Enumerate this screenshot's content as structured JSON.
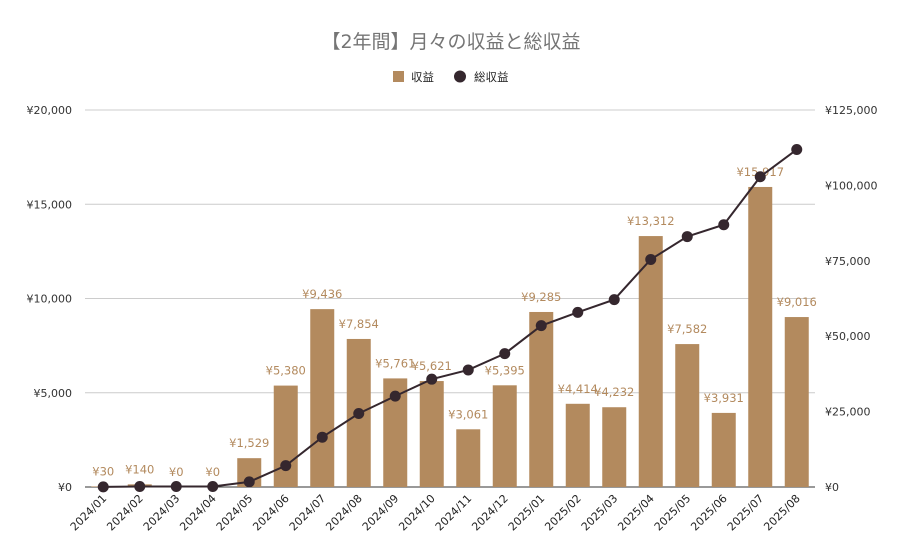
{
  "chart_data": {
    "type": "bar",
    "title": "【2年間】月々の収益と総収益",
    "categories": [
      "2024/01",
      "2024/02",
      "2024/03",
      "2024/04",
      "2024/05",
      "2024/06",
      "2024/07",
      "2024/08",
      "2024/09",
      "2024/10",
      "2024/11",
      "2024/12",
      "2025/01",
      "2025/02",
      "2025/03",
      "2025/04",
      "2025/05",
      "2025/06",
      "2025/07",
      "2025/08"
    ],
    "series": [
      {
        "name": "収益",
        "type": "bar",
        "axis": "left",
        "color": "#b38a5e",
        "values": [
          30,
          140,
          0,
          0,
          1529,
          5380,
          9436,
          7854,
          5761,
          5621,
          3061,
          5395,
          9285,
          4414,
          4232,
          13312,
          7582,
          3931,
          15917,
          9016
        ],
        "labels": [
          "¥30",
          "¥140",
          "¥0",
          "¥0",
          "¥1,529",
          "¥5,380",
          "¥9,436",
          "¥7,854",
          "¥5,761",
          "¥5,621",
          "¥3,061",
          "¥5,395",
          "¥9,285",
          "¥4,414",
          "¥4,232",
          "¥13,312",
          "¥7,582",
          "¥3,931",
          "¥15,917",
          "¥9,016"
        ]
      },
      {
        "name": "総収益",
        "type": "line",
        "axis": "right",
        "color": "#35272e",
        "values": [
          30,
          170,
          170,
          170,
          1699,
          7079,
          16515,
          24369,
          30130,
          35751,
          38812,
          44207,
          53492,
          57906,
          62138,
          75450,
          83032,
          86963,
          102880,
          111896
        ]
      }
    ],
    "y_left": {
      "ylim": [
        0,
        20000
      ],
      "ticks": [
        0,
        5000,
        10000,
        15000,
        20000
      ],
      "tick_labels": [
        "¥0",
        "¥5,000",
        "¥10,000",
        "¥15,000",
        "¥20,000"
      ]
    },
    "y_right": {
      "ylim": [
        0,
        125000
      ],
      "ticks": [
        0,
        25000,
        50000,
        75000,
        100000,
        125000
      ],
      "tick_labels": [
        "¥0",
        "¥25,000",
        "¥50,000",
        "¥75,000",
        "¥100,000",
        "¥125,000"
      ]
    },
    "grid": true,
    "legend": "top-center",
    "label_color": "#b38a5e",
    "gridline_color": "#cccccc"
  }
}
